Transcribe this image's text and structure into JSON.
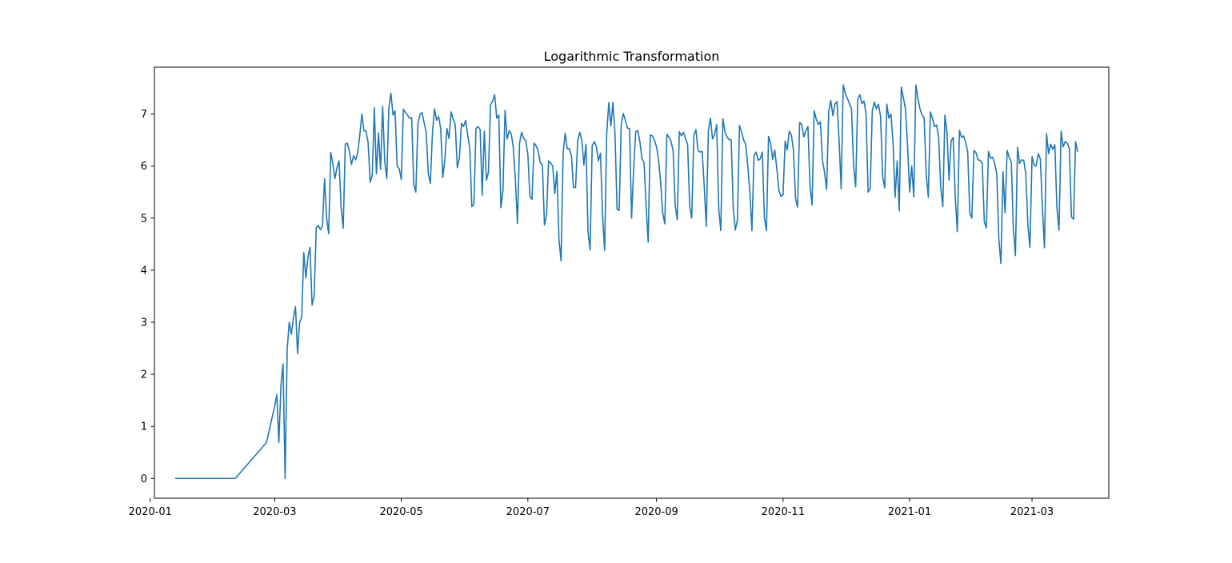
{
  "chart_data": {
    "type": "line",
    "title": "Logarithmic Transformation",
    "xlabel": "",
    "ylabel": "",
    "x_axis_type": "date",
    "xlim": [
      "2020-01-03",
      "2021-04-07"
    ],
    "ylim": [
      -0.38,
      7.9
    ],
    "grid": false,
    "line_color": "#1f77b4",
    "x_ticks": [
      "2020-01",
      "2020-03",
      "2020-05",
      "2020-07",
      "2020-09",
      "2020-11",
      "2021-01",
      "2021-03"
    ],
    "y_ticks": [
      "0",
      "1",
      "2",
      "3",
      "4",
      "5",
      "6",
      "7"
    ],
    "series": [
      {
        "x": [
          "2020-01-13",
          "2020-02-11",
          "2020-02-26",
          "2020-03-01",
          "2020-03-02",
          "2020-03-03",
          "2020-03-04",
          "2020-03-05",
          "2020-03-06",
          "2020-03-07",
          "2020-03-08",
          "2020-03-09",
          "2020-03-10",
          "2020-03-11",
          "2020-03-12",
          "2020-03-13",
          "2020-03-14",
          "2020-03-15",
          "2020-03-16",
          "2020-03-17",
          "2020-03-18",
          "2020-03-19",
          "2020-03-20",
          "2020-03-21",
          "2020-03-22",
          "2020-03-23",
          "2020-03-24",
          "2020-03-25",
          "2020-03-26",
          "2020-03-27",
          "2020-03-28",
          "2020-03-29",
          "2020-03-30",
          "2020-03-31",
          "2020-04-01",
          "2020-04-02",
          "2020-04-03",
          "2020-04-04",
          "2020-04-05",
          "2020-04-06",
          "2020-04-07",
          "2020-04-08",
          "2020-04-09",
          "2020-04-10",
          "2020-04-11",
          "2020-04-12",
          "2020-04-13",
          "2020-04-14",
          "2020-04-15",
          "2020-04-16",
          "2020-04-17",
          "2020-04-18",
          "2020-04-19",
          "2020-04-20",
          "2020-04-21",
          "2020-04-22",
          "2020-04-23",
          "2020-04-24",
          "2020-04-25",
          "2020-04-26",
          "2020-04-27",
          "2020-04-28",
          "2020-04-29",
          "2020-04-30",
          "2020-05-01",
          "2020-05-02",
          "2020-05-03",
          "2020-05-04",
          "2020-05-05",
          "2020-05-06",
          "2020-05-07",
          "2020-05-08",
          "2020-05-09",
          "2020-05-10",
          "2020-05-11",
          "2020-05-12",
          "2020-05-13",
          "2020-05-14",
          "2020-05-15",
          "2020-05-16",
          "2020-05-17",
          "2020-05-18",
          "2020-05-19",
          "2020-05-20",
          "2020-05-21",
          "2020-05-22",
          "2020-05-23",
          "2020-05-24",
          "2020-05-25",
          "2020-05-26",
          "2020-05-27",
          "2020-05-28",
          "2020-05-29",
          "2020-05-30",
          "2020-05-31",
          "2020-06-01",
          "2020-06-02",
          "2020-06-03",
          "2020-06-04",
          "2020-06-05",
          "2020-06-06",
          "2020-06-07",
          "2020-06-08",
          "2020-06-09",
          "2020-06-10",
          "2020-06-11",
          "2020-06-12",
          "2020-06-13",
          "2020-06-14",
          "2020-06-15",
          "2020-06-16",
          "2020-06-17",
          "2020-06-18",
          "2020-06-19",
          "2020-06-20",
          "2020-06-21",
          "2020-06-22",
          "2020-06-23",
          "2020-06-24",
          "2020-06-25",
          "2020-06-26",
          "2020-06-27",
          "2020-06-28",
          "2020-06-29",
          "2020-06-30",
          "2020-07-01",
          "2020-07-02",
          "2020-07-03",
          "2020-07-04",
          "2020-07-05",
          "2020-07-06",
          "2020-07-07",
          "2020-07-08",
          "2020-07-09",
          "2020-07-10",
          "2020-07-11",
          "2020-07-12",
          "2020-07-13",
          "2020-07-14",
          "2020-07-15",
          "2020-07-16",
          "2020-07-17",
          "2020-07-18",
          "2020-07-19",
          "2020-07-20",
          "2020-07-21",
          "2020-07-22",
          "2020-07-23",
          "2020-07-24",
          "2020-07-25",
          "2020-07-26",
          "2020-07-27",
          "2020-07-28",
          "2020-07-29",
          "2020-07-30",
          "2020-07-31",
          "2020-08-01",
          "2020-08-02",
          "2020-08-03",
          "2020-08-04",
          "2020-08-05",
          "2020-08-06",
          "2020-08-07",
          "2020-08-08",
          "2020-08-09",
          "2020-08-10",
          "2020-08-11",
          "2020-08-12",
          "2020-08-13",
          "2020-08-14",
          "2020-08-15",
          "2020-08-16",
          "2020-08-17",
          "2020-08-18",
          "2020-08-19",
          "2020-08-20",
          "2020-08-21",
          "2020-08-22",
          "2020-08-23",
          "2020-08-24",
          "2020-08-25",
          "2020-08-26",
          "2020-08-27",
          "2020-08-28",
          "2020-08-29",
          "2020-08-30",
          "2020-08-31",
          "2020-09-01",
          "2020-09-02",
          "2020-09-03",
          "2020-09-04",
          "2020-09-05",
          "2020-09-06",
          "2020-09-07",
          "2020-09-08",
          "2020-09-09",
          "2020-09-10",
          "2020-09-11",
          "2020-09-12",
          "2020-09-13",
          "2020-09-14",
          "2020-09-15",
          "2020-09-16",
          "2020-09-17",
          "2020-09-18",
          "2020-09-19",
          "2020-09-20",
          "2020-09-21",
          "2020-09-22",
          "2020-09-23",
          "2020-09-24",
          "2020-09-25",
          "2020-09-26",
          "2020-09-27",
          "2020-09-28",
          "2020-09-29",
          "2020-09-30",
          "2020-10-01",
          "2020-10-02",
          "2020-10-03",
          "2020-10-04",
          "2020-10-05",
          "2020-10-06",
          "2020-10-07",
          "2020-10-08",
          "2020-10-09",
          "2020-10-10",
          "2020-10-11",
          "2020-10-12",
          "2020-10-13",
          "2020-10-14",
          "2020-10-15",
          "2020-10-16",
          "2020-10-17",
          "2020-10-18",
          "2020-10-19",
          "2020-10-20",
          "2020-10-21",
          "2020-10-22",
          "2020-10-23",
          "2020-10-24",
          "2020-10-25",
          "2020-10-26",
          "2020-10-27",
          "2020-10-28",
          "2020-10-29",
          "2020-10-30",
          "2020-10-31",
          "2020-11-01",
          "2020-11-02",
          "2020-11-03",
          "2020-11-04",
          "2020-11-05",
          "2020-11-06",
          "2020-11-07",
          "2020-11-08",
          "2020-11-09",
          "2020-11-10",
          "2020-11-11",
          "2020-11-12",
          "2020-11-13",
          "2020-11-14",
          "2020-11-15",
          "2020-11-16",
          "2020-11-17",
          "2020-11-18",
          "2020-11-19",
          "2020-11-20",
          "2020-11-21",
          "2020-11-22",
          "2020-11-23",
          "2020-11-24",
          "2020-11-25",
          "2020-11-26",
          "2020-11-27",
          "2020-11-28",
          "2020-11-29",
          "2020-11-30",
          "2020-12-01",
          "2020-12-02",
          "2020-12-03",
          "2020-12-04",
          "2020-12-05",
          "2020-12-06",
          "2020-12-07",
          "2020-12-08",
          "2020-12-09",
          "2020-12-10",
          "2020-12-11",
          "2020-12-12",
          "2020-12-13",
          "2020-12-14",
          "2020-12-15",
          "2020-12-16",
          "2020-12-17",
          "2020-12-18",
          "2020-12-19",
          "2020-12-20",
          "2020-12-21",
          "2020-12-22",
          "2020-12-23",
          "2020-12-24",
          "2020-12-25",
          "2020-12-26",
          "2020-12-27",
          "2020-12-28",
          "2020-12-29",
          "2020-12-30",
          "2020-12-31",
          "2021-01-01",
          "2021-01-02",
          "2021-01-03",
          "2021-01-04",
          "2021-01-05",
          "2021-01-06",
          "2021-01-07",
          "2021-01-08",
          "2021-01-09",
          "2021-01-10",
          "2021-01-11",
          "2021-01-12",
          "2021-01-13",
          "2021-01-14",
          "2021-01-15",
          "2021-01-16",
          "2021-01-17",
          "2021-01-18",
          "2021-01-19",
          "2021-01-20",
          "2021-01-21",
          "2021-01-22",
          "2021-01-23",
          "2021-01-24",
          "2021-01-25",
          "2021-01-26",
          "2021-01-27",
          "2021-01-28",
          "2021-01-29",
          "2021-01-30",
          "2021-01-31",
          "2021-02-01",
          "2021-02-02",
          "2021-02-03",
          "2021-02-04",
          "2021-02-05",
          "2021-02-06",
          "2021-02-07",
          "2021-02-08",
          "2021-02-09",
          "2021-02-10",
          "2021-02-11",
          "2021-02-12",
          "2021-02-13",
          "2021-02-14",
          "2021-02-15",
          "2021-02-16",
          "2021-02-17",
          "2021-02-18",
          "2021-02-19",
          "2021-02-20",
          "2021-02-21",
          "2021-02-22",
          "2021-02-23",
          "2021-02-24",
          "2021-02-25",
          "2021-02-26",
          "2021-02-27",
          "2021-02-28",
          "2021-03-01",
          "2021-03-02",
          "2021-03-03",
          "2021-03-04",
          "2021-03-05",
          "2021-03-06",
          "2021-03-07",
          "2021-03-08",
          "2021-03-09",
          "2021-03-10",
          "2021-03-11",
          "2021-03-12",
          "2021-03-13",
          "2021-03-14",
          "2021-03-15",
          "2021-03-16",
          "2021-03-17",
          "2021-03-18",
          "2021-03-19",
          "2021-03-20",
          "2021-03-21",
          "2021-03-22",
          "2021-03-23"
        ],
        "y": [
          0,
          0,
          0.69,
          1.39,
          1.61,
          0.69,
          1.79,
          2.2,
          0.0,
          2.48,
          3.0,
          2.77,
          3.09,
          3.3,
          2.4,
          3.0,
          3.09,
          4.34,
          3.85,
          4.25,
          4.44,
          3.33,
          3.5,
          4.81,
          4.86,
          4.78,
          4.85,
          5.76,
          5.0,
          4.7,
          6.26,
          6.05,
          5.76,
          5.97,
          6.1,
          5.2,
          4.81,
          6.42,
          6.44,
          6.28,
          6.03,
          6.2,
          6.12,
          6.25,
          6.6,
          7.0,
          6.68,
          6.67,
          6.45,
          5.69,
          5.82,
          7.12,
          5.85,
          6.64,
          5.94,
          7.15,
          6.09,
          5.76,
          7.12,
          7.4,
          6.98,
          7.06,
          6.0,
          5.95,
          5.74,
          7.09,
          7.03,
          6.98,
          6.92,
          6.93,
          5.65,
          5.5,
          6.81,
          6.99,
          7.03,
          6.83,
          6.65,
          5.86,
          5.67,
          6.63,
          7.1,
          6.88,
          6.95,
          6.72,
          5.78,
          6.12,
          6.72,
          6.53,
          7.04,
          6.9,
          6.8,
          5.97,
          6.15,
          6.82,
          6.76,
          6.88,
          6.59,
          6.35,
          5.22,
          5.27,
          6.72,
          6.76,
          6.7,
          5.44,
          6.67,
          5.73,
          5.88,
          7.17,
          7.25,
          7.37,
          6.92,
          6.98,
          5.2,
          5.53,
          7.07,
          6.52,
          6.68,
          6.62,
          6.35,
          5.72,
          4.9,
          6.44,
          6.65,
          6.53,
          6.49,
          6.22,
          5.42,
          5.36,
          6.44,
          6.39,
          6.29,
          6.06,
          6.03,
          4.87,
          5.06,
          6.1,
          6.06,
          6.0,
          5.47,
          5.9,
          4.59,
          4.18,
          6.25,
          6.63,
          6.33,
          6.34,
          6.19,
          5.59,
          5.59,
          6.48,
          6.65,
          6.5,
          6.02,
          6.42,
          4.74,
          4.39,
          6.39,
          6.47,
          6.38,
          6.1,
          6.25,
          5.07,
          4.38,
          6.62,
          7.22,
          6.77,
          7.22,
          6.63,
          5.17,
          5.15,
          6.8,
          7.01,
          6.88,
          6.73,
          6.72,
          5.0,
          5.96,
          6.66,
          6.68,
          6.47,
          6.14,
          6.07,
          5.22,
          4.54,
          6.6,
          6.58,
          6.5,
          6.37,
          6.13,
          5.68,
          5.1,
          4.89,
          6.61,
          6.56,
          6.47,
          6.3,
          5.26,
          4.97,
          6.66,
          6.58,
          6.65,
          6.52,
          6.42,
          5.23,
          5.0,
          6.6,
          6.7,
          6.3,
          6.27,
          6.28,
          5.62,
          4.84,
          6.68,
          6.92,
          6.52,
          6.6,
          6.8,
          5.18,
          4.76,
          6.91,
          6.66,
          6.56,
          6.51,
          6.5,
          5.2,
          4.77,
          4.97,
          6.78,
          6.66,
          6.5,
          6.42,
          6.0,
          5.5,
          4.76,
          6.2,
          6.27,
          6.11,
          6.14,
          6.27,
          5.01,
          4.76,
          6.57,
          6.44,
          6.13,
          6.31,
          5.95,
          5.53,
          5.42,
          5.45,
          6.48,
          6.31,
          6.67,
          6.6,
          6.31,
          5.38,
          5.21,
          6.84,
          6.8,
          6.56,
          6.68,
          6.76,
          5.61,
          5.25,
          7.06,
          6.9,
          6.8,
          6.85,
          6.11,
          5.88,
          5.55,
          7.05,
          7.26,
          6.97,
          7.19,
          7.24,
          6.5,
          5.56,
          7.56,
          7.4,
          7.3,
          7.2,
          7.1,
          6.0,
          5.6,
          7.28,
          7.37,
          7.2,
          7.25,
          7.0,
          5.5,
          5.56,
          7.06,
          7.23,
          7.1,
          7.19,
          6.95,
          5.8,
          5.58,
          7.19,
          6.92,
          7.0,
          6.45,
          5.4,
          6.1,
          5.14,
          7.52,
          7.31,
          7.1,
          6.4,
          5.5,
          6.0,
          5.41,
          7.56,
          7.3,
          7.1,
          6.98,
          6.93,
          5.85,
          5.4,
          7.04,
          6.92,
          6.76,
          6.79,
          6.55,
          5.6,
          5.22,
          6.98,
          6.65,
          5.73,
          6.48,
          6.55,
          5.4,
          4.74,
          6.69,
          6.55,
          6.58,
          6.46,
          6.27,
          5.1,
          5.0,
          6.3,
          6.26,
          6.12,
          6.11,
          6.05,
          4.93,
          4.81,
          6.28,
          6.15,
          6.17,
          6.05,
          5.85,
          4.6,
          4.13,
          5.89,
          5.1,
          6.3,
          6.17,
          6.08,
          4.8,
          4.28,
          6.36,
          6.05,
          6.12,
          6.11,
          5.85,
          4.87,
          4.44,
          6.18,
          6.02,
          6.0,
          6.24,
          6.14,
          5.2,
          4.43,
          6.62,
          6.24,
          6.42,
          6.32,
          6.41,
          5.2,
          4.77,
          6.67,
          6.37,
          6.47,
          6.44,
          6.33,
          5.02,
          4.98,
          6.47,
          6.27
        ]
      }
    ]
  }
}
